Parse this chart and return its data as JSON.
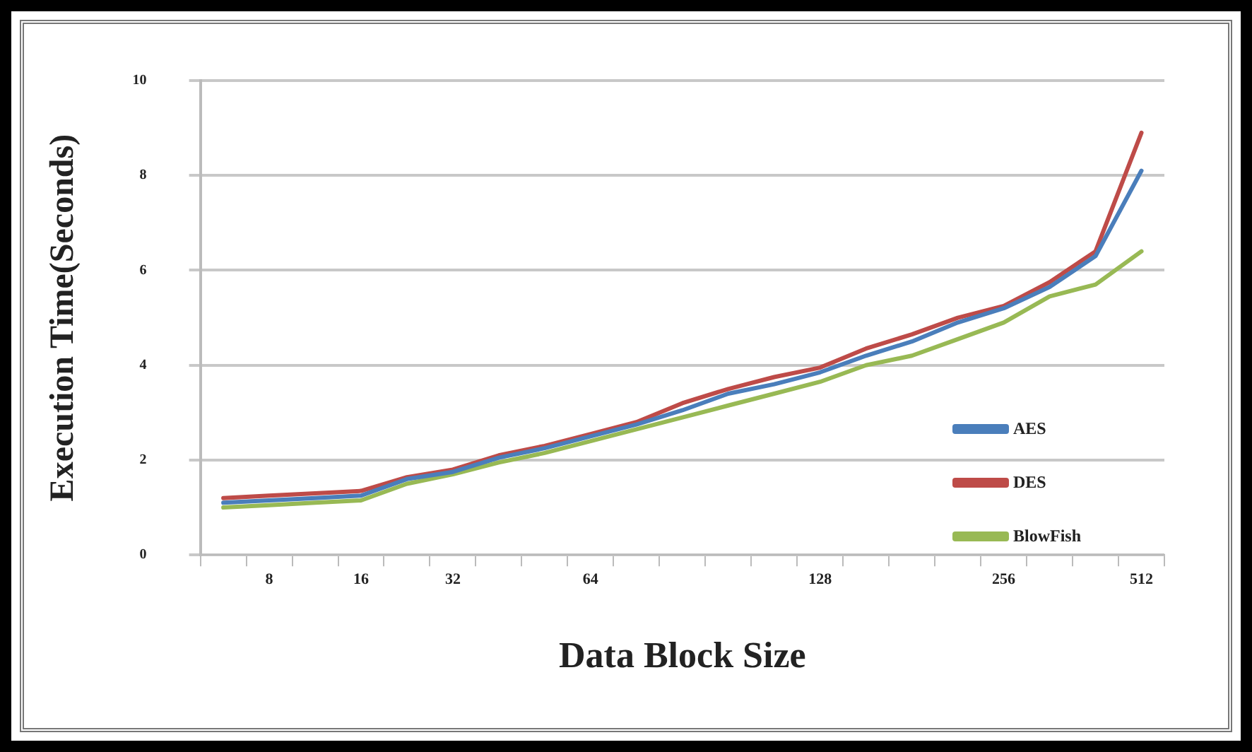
{
  "chart_data": {
    "type": "line",
    "xlabel": "Data Block Size",
    "ylabel": "Execution Time(Seconds)",
    "categories": [
      null,
      "8",
      null,
      "16",
      null,
      "32",
      null,
      null,
      "64",
      null,
      null,
      null,
      null,
      "128",
      null,
      null,
      null,
      "256",
      null,
      null,
      "512"
    ],
    "series": [
      {
        "name": "AES",
        "color": "#4a7ebb",
        "values": [
          1.1,
          1.15,
          1.2,
          1.25,
          1.6,
          1.75,
          2.05,
          2.25,
          2.5,
          2.75,
          3.05,
          3.4,
          3.6,
          3.85,
          4.2,
          4.5,
          4.9,
          5.2,
          5.65,
          6.3,
          8.1
        ]
      },
      {
        "name": "DES",
        "color": "#be4b48",
        "values": [
          1.2,
          1.25,
          1.3,
          1.35,
          1.64,
          1.8,
          2.1,
          2.3,
          2.55,
          2.8,
          3.2,
          3.5,
          3.75,
          3.95,
          4.35,
          4.65,
          5.0,
          5.25,
          5.75,
          6.4,
          8.9
        ]
      },
      {
        "name": "BlowFish",
        "color": "#98b954",
        "values": [
          1.0,
          1.05,
          1.1,
          1.15,
          1.5,
          1.7,
          1.95,
          2.15,
          2.4,
          2.65,
          2.9,
          3.15,
          3.4,
          3.65,
          4.0,
          4.2,
          4.55,
          4.9,
          5.45,
          5.7,
          6.4
        ]
      }
    ],
    "ylim": [
      0,
      10
    ],
    "yticks": [
      0,
      2,
      4,
      6,
      8,
      10
    ],
    "grid": "y",
    "legend": "bottom right",
    "marker": "none",
    "line_style": "solid"
  }
}
